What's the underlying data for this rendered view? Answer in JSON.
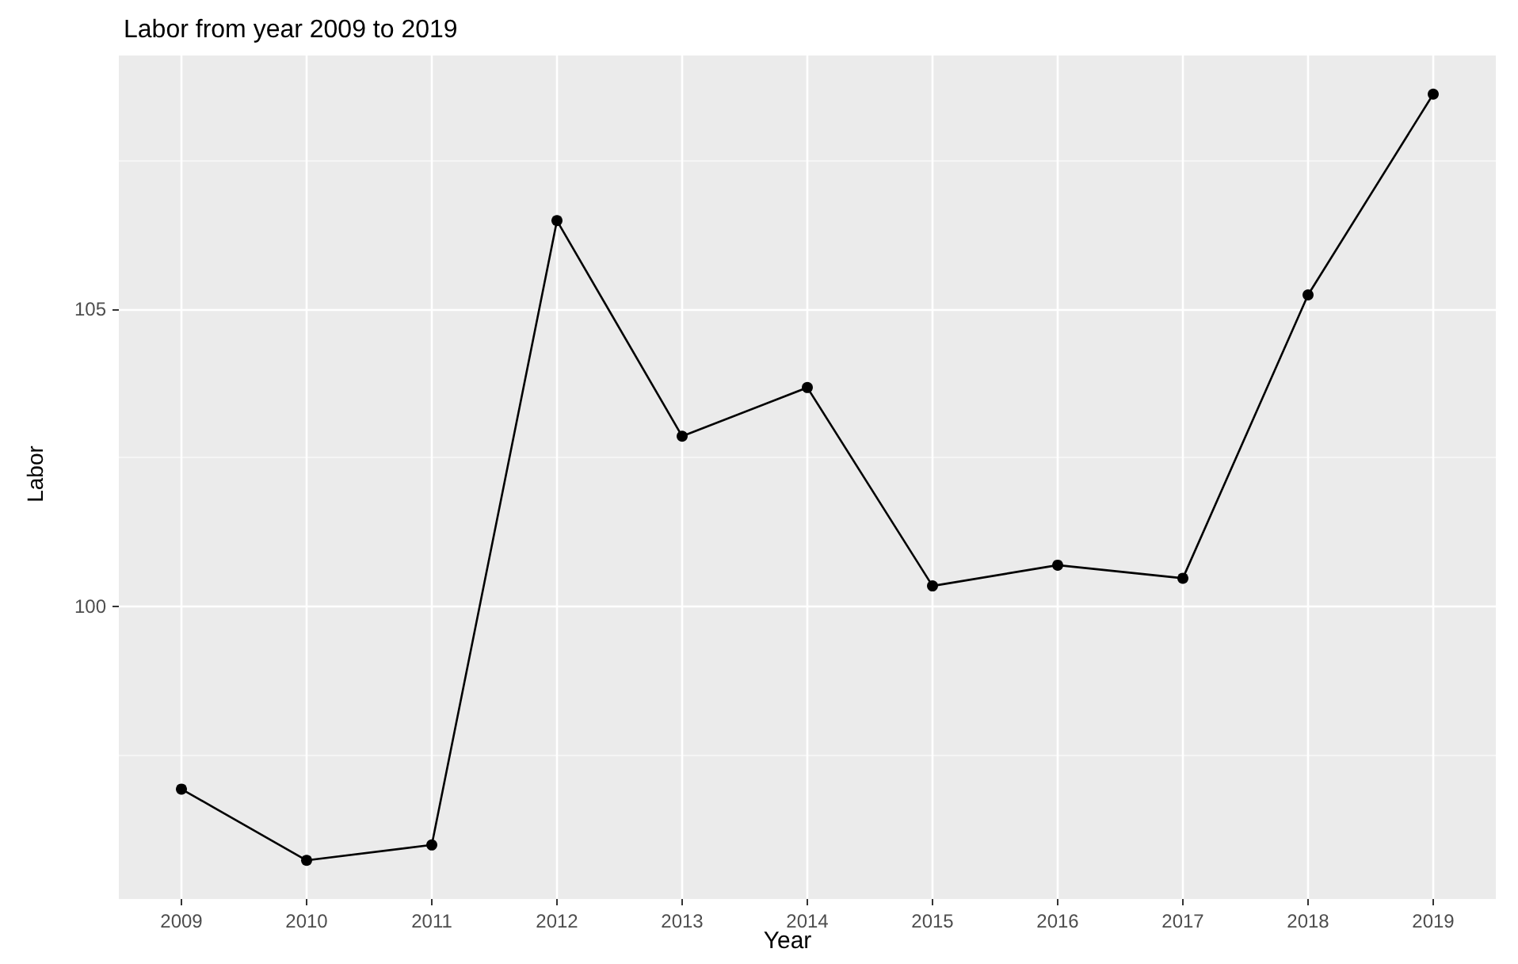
{
  "chart_data": {
    "type": "line",
    "title": "Labor from year 2009 to 2019",
    "xlabel": "Year",
    "ylabel": "Labor",
    "x": [
      2009,
      2010,
      2011,
      2012,
      2013,
      2014,
      2015,
      2016,
      2017,
      2018,
      2019
    ],
    "series": [
      {
        "color": "#000000",
        "values": [
          96.92,
          95.72,
          95.98,
          106.49,
          102.86,
          103.68,
          100.34,
          100.69,
          100.47,
          105.24,
          108.62
        ]
      }
    ],
    "xlim": [
      2008.5,
      2019.5
    ],
    "xticks": [
      2009,
      2010,
      2011,
      2012,
      2013,
      2014,
      2015,
      2016,
      2017,
      2018,
      2019
    ],
    "ylim": [
      95.07,
      109.27
    ],
    "yticks": [
      {
        "value": 97.5,
        "label": null
      },
      100,
      {
        "value": 102.5,
        "label": null
      },
      105,
      {
        "value": 107.5,
        "label": null
      }
    ],
    "grid": true,
    "marker": "circle",
    "line_style": "solid"
  }
}
